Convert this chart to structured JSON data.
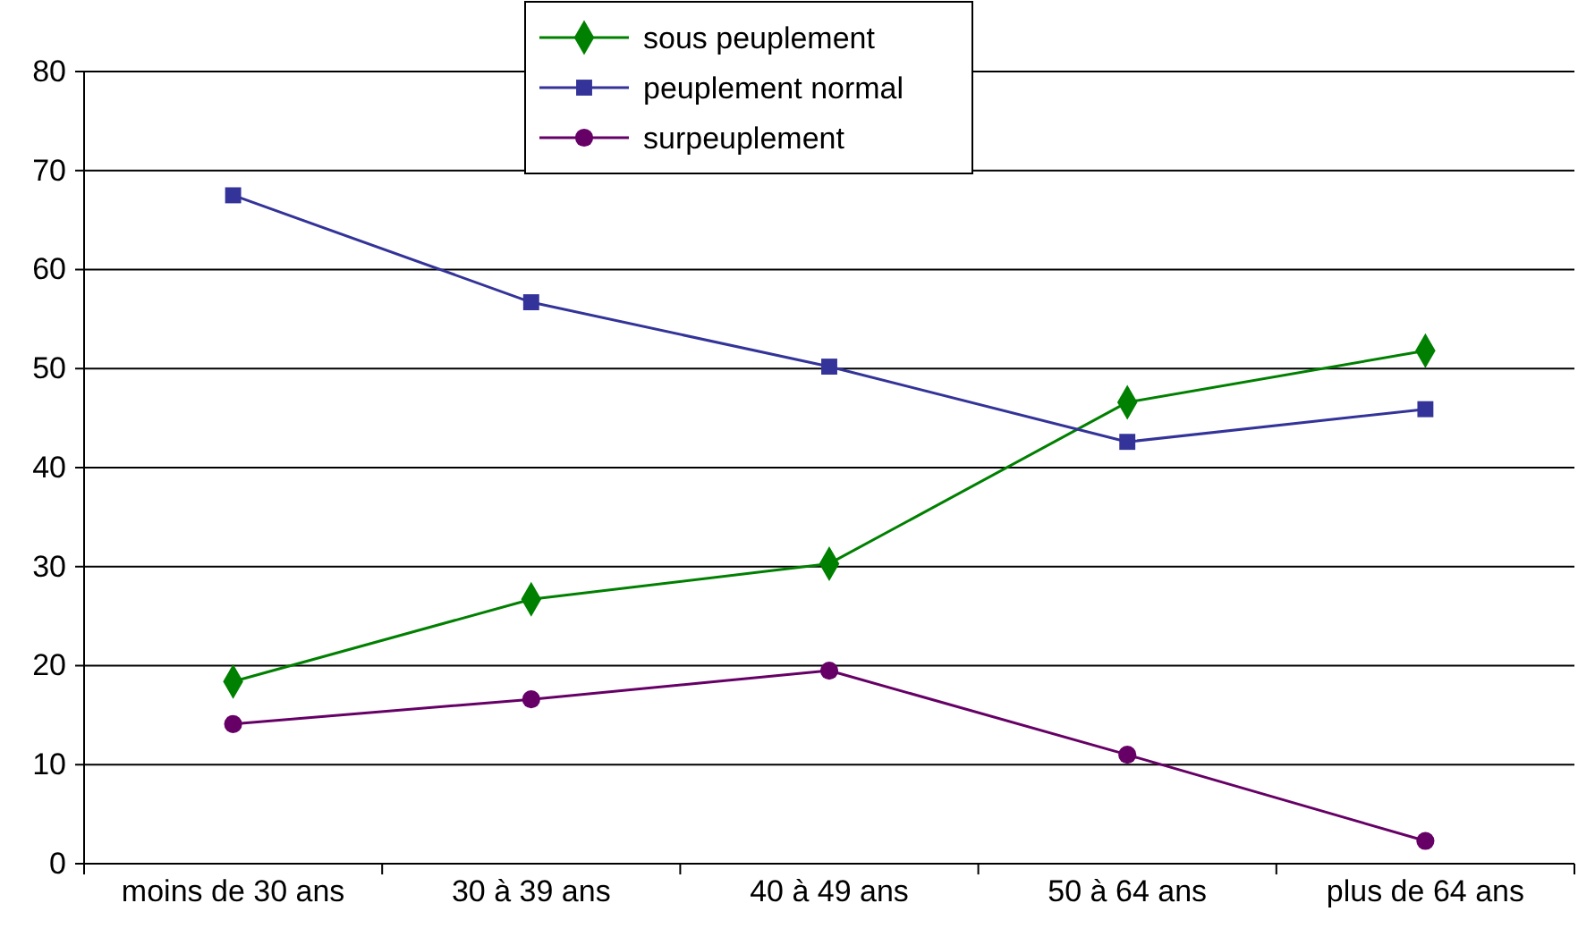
{
  "chart_data": {
    "type": "line",
    "categories": [
      "moins de 30 ans",
      "30 à 39 ans",
      "40 à 49 ans",
      "50 à 64 ans",
      "plus de 64 ans"
    ],
    "series": [
      {
        "name": "sous peuplement",
        "color": "#008000",
        "marker": "diamond",
        "values": [
          18.4,
          26.7,
          30.3,
          46.6,
          51.8
        ]
      },
      {
        "name": "peuplement normal",
        "color": "#333399",
        "marker": "square",
        "values": [
          67.5,
          56.7,
          50.2,
          42.6,
          45.9
        ]
      },
      {
        "name": "surpeuplement",
        "color": "#660066",
        "marker": "circle",
        "values": [
          14.1,
          16.6,
          19.5,
          11.0,
          2.3
        ]
      }
    ],
    "ylim": [
      0,
      80
    ],
    "yticks": [
      0,
      10,
      20,
      30,
      40,
      50,
      60,
      70,
      80
    ],
    "grid": "y",
    "legend": "top"
  }
}
